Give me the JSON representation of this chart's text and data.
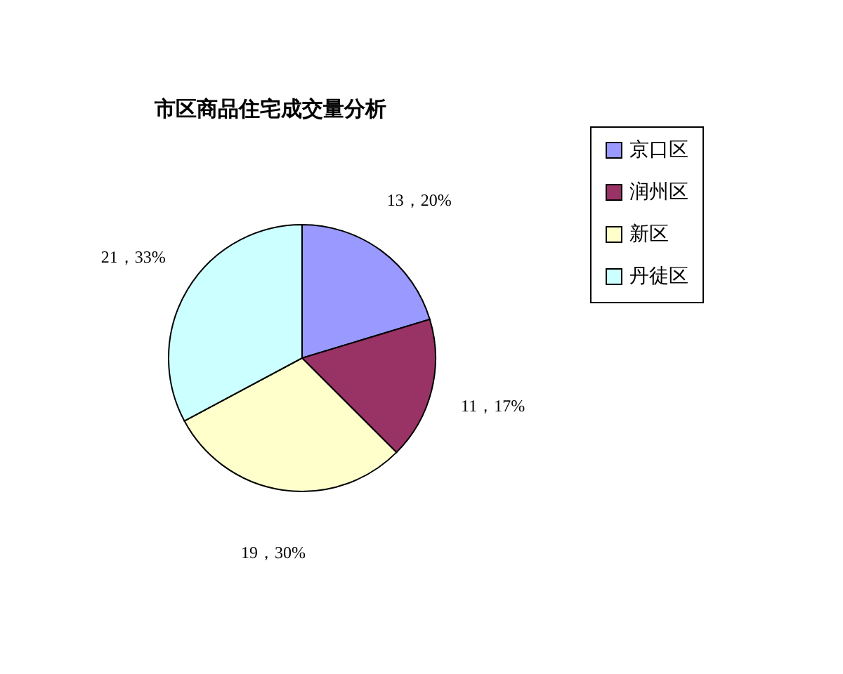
{
  "chart_data": {
    "type": "pie",
    "title": "市区商品住宅成交量分析",
    "categories": [
      "京口区",
      "润州区",
      "新区",
      "丹徒区"
    ],
    "values": [
      13,
      11,
      19,
      21
    ],
    "value_labels": [
      "13，20%",
      "11，17%",
      "19，30%",
      "21，33%"
    ],
    "colors": [
      "#9999ff",
      "#993366",
      "#ffffcc",
      "#ccffff"
    ],
    "legend": "right"
  }
}
